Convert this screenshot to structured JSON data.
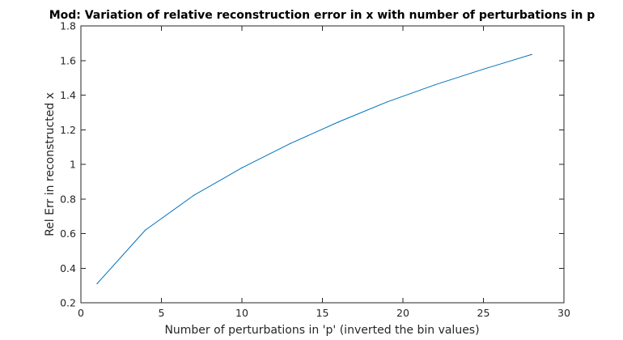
{
  "chart_data": {
    "type": "line",
    "title": "Mod: Variation of relative reconstruction error in x with number of perturbations in p",
    "xlabel": "Number of perturbations in 'p' (inverted the bin values)",
    "ylabel": "Rel Err in reconstructed x",
    "xlim": [
      0,
      30
    ],
    "ylim": [
      0.2,
      1.8
    ],
    "xticks": [
      0,
      5,
      10,
      15,
      20,
      25,
      30
    ],
    "yticks": [
      0.2,
      0.4,
      0.6,
      0.8,
      1,
      1.2,
      1.4,
      1.6,
      1.8
    ],
    "xtick_labels": [
      "0",
      "5",
      "10",
      "15",
      "20",
      "25",
      "30"
    ],
    "ytick_labels": [
      "0.2",
      "0.4",
      "0.6",
      "0.8",
      "1",
      "1.2",
      "1.4",
      "1.6",
      "1.8"
    ],
    "grid": false,
    "series": [
      {
        "color": "#0072bd",
        "x": [
          1,
          4,
          7,
          10,
          13,
          16,
          19,
          22,
          25,
          28
        ],
        "y": [
          0.31,
          0.62,
          0.82,
          0.98,
          1.12,
          1.245,
          1.36,
          1.46,
          1.55,
          1.635
        ]
      }
    ]
  }
}
